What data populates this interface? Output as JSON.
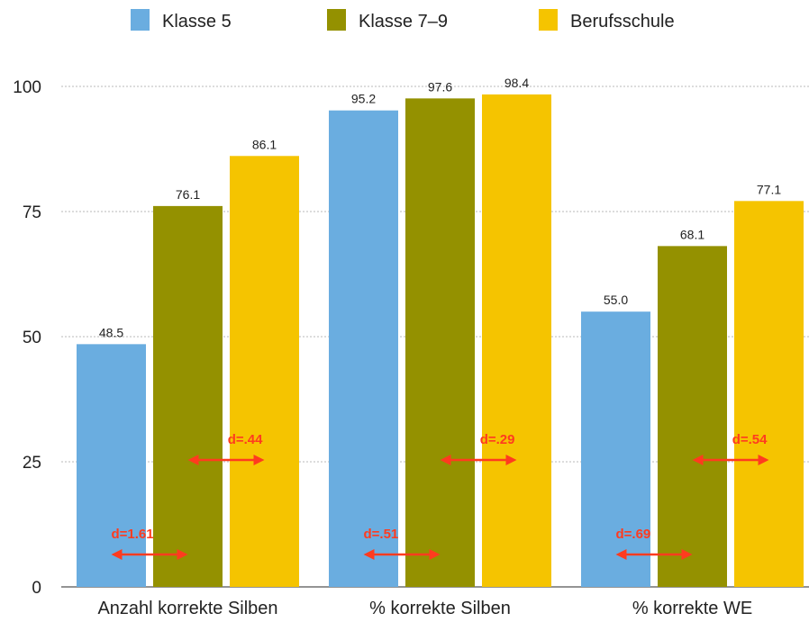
{
  "chart_data": {
    "type": "bar",
    "categories": [
      "Anzahl korrekte Silben",
      "% korrekte Silben",
      "% korrekte WE"
    ],
    "series": [
      {
        "name": "Klasse 5",
        "color": "#6aade0",
        "values": [
          48.5,
          95.2,
          55.0
        ],
        "labels": [
          "48.5",
          "95.2",
          "55.0"
        ]
      },
      {
        "name": "Klasse 7–9",
        "color": "#949100",
        "values": [
          76.1,
          97.6,
          68.1
        ],
        "labels": [
          "76.1",
          "97.6",
          "68.1"
        ]
      },
      {
        "name": "Berufsschule",
        "color": "#f5c400",
        "values": [
          86.1,
          98.4,
          77.1
        ],
        "labels": [
          "86.1",
          "98.4",
          "77.1"
        ]
      }
    ],
    "ylim": [
      0,
      100
    ],
    "yticks": [
      0,
      25,
      50,
      75,
      100
    ],
    "ytick_labels": [
      "0",
      "25",
      "50",
      "75",
      "100"
    ],
    "grid": true,
    "legend_position": "top",
    "annotations": [
      {
        "category": 0,
        "text": "d=1.61",
        "from_series": 0,
        "to_series": 1,
        "level": "low"
      },
      {
        "category": 0,
        "text": "d=.44",
        "from_series": 1,
        "to_series": 2,
        "level": "mid"
      },
      {
        "category": 1,
        "text": "d=.51",
        "from_series": 0,
        "to_series": 1,
        "level": "low"
      },
      {
        "category": 1,
        "text": "d=.29",
        "from_series": 1,
        "to_series": 2,
        "level": "mid"
      },
      {
        "category": 2,
        "text": "d=.69",
        "from_series": 0,
        "to_series": 1,
        "level": "low"
      },
      {
        "category": 2,
        "text": "d=.54",
        "from_series": 1,
        "to_series": 2,
        "level": "mid"
      }
    ],
    "annotation_color": "#ff3b1f"
  }
}
